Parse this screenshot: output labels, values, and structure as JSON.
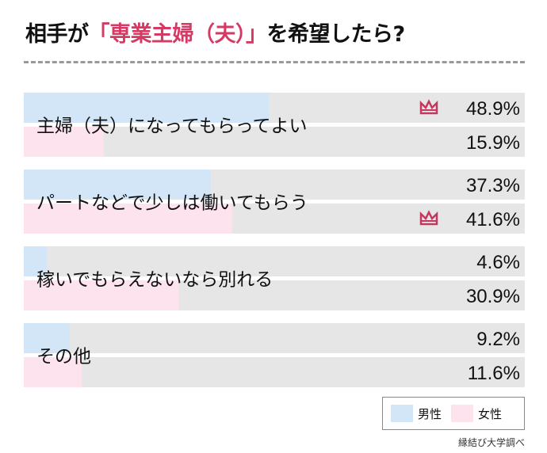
{
  "header": {
    "title_pre": "相手が",
    "title_accent": "「専業主婦（夫）」",
    "title_post": "を希望したら?"
  },
  "colors": {
    "male": "#d3e6f8",
    "female": "#fce3ee",
    "remainder": "#e6e6e6",
    "accent": "#d63a64",
    "crown": "#c4375e"
  },
  "legend": {
    "male": "男性",
    "female": "女性"
  },
  "source": "縁結び大学調べ",
  "chart_data": {
    "type": "bar",
    "orientation": "horizontal",
    "title": "相手が「専業主婦（夫）」を希望したら?",
    "unit": "%",
    "xlim": [
      0,
      100
    ],
    "categories": [
      "主婦（夫）になってもらってよい",
      "パートなどで少しは働いてもらう",
      "稼いでもらえないなら別れる",
      "その他"
    ],
    "series": [
      {
        "name": "男性",
        "values": [
          48.9,
          37.3,
          4.6,
          9.2
        ],
        "labels": [
          "48.9%",
          "37.3%",
          "4.6%",
          "9.2%"
        ]
      },
      {
        "name": "女性",
        "values": [
          15.9,
          41.6,
          30.9,
          11.6
        ],
        "labels": [
          "15.9%",
          "41.6%",
          "30.9%",
          "11.6%"
        ]
      }
    ],
    "annotations": [
      {
        "type": "crown-icon",
        "series": "男性",
        "category": "主婦（夫）になってもらってよい"
      },
      {
        "type": "crown-icon",
        "series": "女性",
        "category": "パートなどで少しは働いてもらう"
      }
    ]
  }
}
